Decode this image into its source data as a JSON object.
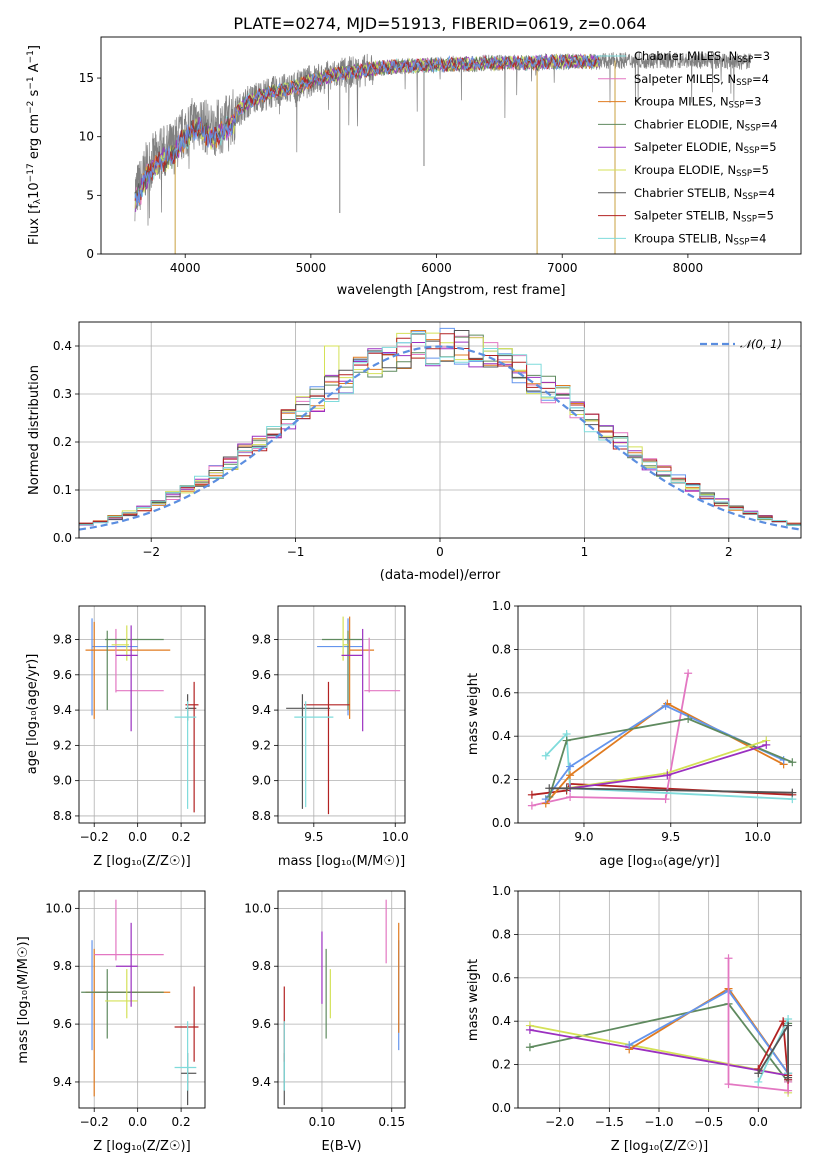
{
  "title": "PLATE=0274, MJD=51913, FIBERID=0619, z=0.064",
  "colors": {
    "c1": "#6495ed",
    "c2": "#e377c2",
    "c3": "#e07b20",
    "c4": "#5f8a5f",
    "c5": "#9b30c0",
    "c6": "#d4e157",
    "c7": "#555555",
    "c8": "#b22222",
    "c9": "#7fdbdb",
    "gray": "#808080",
    "grid": "#b0b0b0",
    "normal": "#5b8ee0"
  },
  "chart_data": [
    {
      "id": "spectrum",
      "type": "line",
      "xlabel": "wavelength [Angstrom, rest frame]",
      "ylabel_parts": [
        "Flux [f",
        "λ",
        "10",
        "−17",
        " erg cm",
        "−2",
        " s",
        "−1",
        " A",
        "−1",
        "]"
      ],
      "xlim": [
        3330,
        8900
      ],
      "ylim": [
        0,
        18.5
      ],
      "xticks": [
        4000,
        5000,
        6000,
        7000,
        8000
      ],
      "yticks": [
        0,
        5,
        10,
        15
      ],
      "ytick_labels": [
        "0",
        "5",
        "10",
        "15"
      ],
      "data_x": [
        3600,
        3650,
        3700,
        3800,
        3900,
        4000,
        4100,
        4200,
        4300,
        4400,
        4500,
        4600,
        4700,
        4800,
        4900,
        5000,
        5100,
        5200,
        5300,
        5400,
        5500,
        5600,
        5700,
        5800,
        5900,
        6000,
        6100,
        6200,
        6300,
        6400,
        6500,
        6600,
        6700,
        6800,
        6900,
        7000,
        7100,
        7200,
        7300,
        7400,
        7500,
        7600,
        7700,
        7800,
        7900,
        8000,
        8100,
        8200,
        8300,
        8400,
        8500
      ],
      "model_y": [
        5.2,
        6.0,
        7.5,
        8.5,
        9.0,
        10.5,
        11.5,
        10.5,
        11.0,
        12.0,
        13.0,
        13.5,
        13.8,
        14.0,
        14.3,
        14.8,
        15.0,
        15.3,
        15.5,
        15.6,
        15.8,
        15.9,
        16.0,
        16.0,
        16.1,
        16.1,
        16.2,
        16.2,
        16.2,
        16.3,
        16.3,
        16.3,
        16.3,
        16.3,
        16.4,
        16.4,
        16.4,
        16.4,
        16.4,
        16.5,
        16.5,
        16.5,
        16.5,
        16.5,
        16.5,
        16.5,
        16.5,
        16.5,
        16.4,
        16.4,
        16.4
      ],
      "model_end": [
        7300,
        8500
      ],
      "legend": [
        {
          "pre": "Chabrier MILES, N",
          "sub": "SSP",
          "post": "=3",
          "color": "c9"
        },
        {
          "pre": "Salpeter MILES, N",
          "sub": "SSP",
          "post": "=4",
          "color": "c2"
        },
        {
          "pre": "Kroupa MILES, N",
          "sub": "SSP",
          "post": "=3",
          "color": "c3"
        },
        {
          "pre": "Chabrier ELODIE, N",
          "sub": "SSP",
          "post": "=4",
          "color": "c4"
        },
        {
          "pre": "Salpeter ELODIE, N",
          "sub": "SSP",
          "post": "=5",
          "color": "c5"
        },
        {
          "pre": "Kroupa ELODIE, N",
          "sub": "SSP",
          "post": "=5",
          "color": "c6"
        },
        {
          "pre": "Chabrier STELIB, N",
          "sub": "SSP",
          "post": "=4",
          "color": "c7"
        },
        {
          "pre": "Salpeter STELIB, N",
          "sub": "SSP",
          "post": "=5",
          "color": "c8"
        },
        {
          "pre": "Kroupa STELIB, N",
          "sub": "SSP",
          "post": "=4",
          "color": "c9"
        }
      ]
    },
    {
      "id": "residuals",
      "type": "step",
      "xlabel": "(data-model)/error",
      "ylabel": "Normed distribution",
      "xlim": [
        -2.5,
        2.5
      ],
      "ylim": [
        0,
        0.45
      ],
      "xticks": [
        -2,
        -1,
        0,
        1,
        2
      ],
      "xtick_labels": [
        "−2",
        "−1",
        "0",
        "1",
        "2"
      ],
      "yticks": [
        0,
        0.1,
        0.2,
        0.3,
        0.4
      ],
      "ytick_labels": [
        "0.0",
        "0.1",
        "0.2",
        "0.3",
        "0.4"
      ],
      "legend_label": "𝒩(0, 1)",
      "bin_width": 0.1
    },
    {
      "id": "z-age",
      "type": "errorbar",
      "xlabel": "Z [log₁₀(Z/Z☉)]",
      "ylabel": "age  [log₁₀(age/yr)]",
      "xlim": [
        -0.27,
        0.31
      ],
      "ylim": [
        8.76,
        9.99
      ],
      "xticks": [
        -0.2,
        0,
        0.2
      ],
      "xtick_labels": [
        "−0.2",
        "0.0",
        "0.2"
      ],
      "yticks": [
        8.8,
        9.0,
        9.2,
        9.4,
        9.6,
        9.8
      ],
      "ytick_labels": [
        "8.8",
        "9.0",
        "9.2",
        "9.4",
        "9.6",
        "9.8"
      ],
      "points": [
        {
          "c": "c1",
          "x": -0.21,
          "xe": [
            -0.21,
            0.0
          ],
          "y": 9.76,
          "ye": [
            9.37,
            9.92
          ]
        },
        {
          "c": "c3",
          "x": -0.2,
          "xe": [
            -0.24,
            0.15
          ],
          "y": 9.74,
          "ye": [
            9.35,
            9.9
          ]
        },
        {
          "c": "c2",
          "x": -0.1,
          "xe": [
            -0.1,
            0.12
          ],
          "y": 9.51,
          "ye": [
            9.5,
            9.86
          ]
        },
        {
          "c": "c4",
          "x": -0.14,
          "xe": [
            -0.15,
            0.12
          ],
          "y": 9.8,
          "ye": [
            9.4,
            9.85
          ]
        },
        {
          "c": "c6",
          "x": -0.05,
          "xe": [
            -0.12,
            -0.04
          ],
          "y": 9.77,
          "ye": [
            9.68,
            9.88
          ]
        },
        {
          "c": "c5",
          "x": -0.03,
          "xe": [
            -0.1,
            0.0
          ],
          "y": 9.71,
          "ye": [
            9.28,
            9.88
          ]
        },
        {
          "c": "c7",
          "x": 0.23,
          "xe": [
            0.22,
            0.27
          ],
          "y": 9.41,
          "ye": [
            9.34,
            9.49
          ]
        },
        {
          "c": "c8",
          "x": 0.26,
          "xe": [
            0.22,
            0.28
          ],
          "y": 9.43,
          "ye": [
            8.82,
            9.56
          ]
        },
        {
          "c": "c9",
          "x": 0.23,
          "xe": [
            0.17,
            0.27
          ],
          "y": 9.36,
          "ye": [
            8.84,
            9.45
          ]
        }
      ]
    },
    {
      "id": "mass-age",
      "type": "errorbar",
      "xlabel": "mass [log₁₀(M/M☉)]",
      "ylabel": "",
      "xlim": [
        9.28,
        10.06
      ],
      "ylim": [
        8.76,
        9.99
      ],
      "xticks": [
        9.5,
        10.0
      ],
      "xtick_labels": [
        "9.5",
        "10.0"
      ],
      "yticks": [
        8.8,
        9.0,
        9.2,
        9.4,
        9.6,
        9.8
      ],
      "ytick_labels": [
        "8.8",
        "9.0",
        "9.2",
        "9.4",
        "9.6",
        "9.8"
      ],
      "points": [
        {
          "c": "c1",
          "x": 9.71,
          "xe": [
            9.52,
            9.8
          ],
          "y": 9.76,
          "ye": [
            9.37,
            9.92
          ]
        },
        {
          "c": "c3",
          "x": 9.72,
          "xe": [
            9.72,
            9.87
          ],
          "y": 9.74,
          "ye": [
            9.35,
            9.93
          ]
        },
        {
          "c": "c2",
          "x": 9.84,
          "xe": [
            9.81,
            10.03
          ],
          "y": 9.51,
          "ye": [
            9.5,
            9.81
          ]
        },
        {
          "c": "c4",
          "x": 9.71,
          "xe": [
            9.55,
            9.8
          ],
          "y": 9.8,
          "ye": [
            9.4,
            9.85
          ]
        },
        {
          "c": "c6",
          "x": 9.68,
          "xe": [
            9.68,
            9.71
          ],
          "y": 9.77,
          "ye": [
            9.68,
            9.93
          ]
        },
        {
          "c": "c5",
          "x": 9.8,
          "xe": [
            9.67,
            9.8
          ],
          "y": 9.71,
          "ye": [
            9.28,
            9.86
          ]
        },
        {
          "c": "c7",
          "x": 9.43,
          "xe": [
            9.33,
            9.6
          ],
          "y": 9.41,
          "ye": [
            8.84,
            9.49
          ]
        },
        {
          "c": "c8",
          "x": 9.59,
          "xe": [
            9.44,
            9.72
          ],
          "y": 9.43,
          "ye": [
            8.81,
            9.56
          ]
        },
        {
          "c": "c9",
          "x": 9.45,
          "xe": [
            9.38,
            9.62
          ],
          "y": 9.36,
          "ye": [
            8.85,
            9.45
          ]
        }
      ]
    },
    {
      "id": "age-weight",
      "type": "line",
      "xlabel": "age  [log₁₀(age/yr)]",
      "ylabel": "mass weight",
      "xlim": [
        8.62,
        10.25
      ],
      "ylim": [
        0,
        1
      ],
      "xticks": [
        9.0,
        9.5,
        10.0
      ],
      "xtick_labels": [
        "9.0",
        "9.5",
        "10.0"
      ],
      "yticks": [
        0,
        0.2,
        0.4,
        0.6,
        0.8,
        1.0
      ],
      "ytick_labels": [
        "0.0",
        "0.2",
        "0.4",
        "0.6",
        "0.8",
        "1.0"
      ],
      "series": [
        {
          "c": "c8",
          "x": [
            8.7,
            8.9,
            8.92,
            10.2
          ],
          "y": [
            0.13,
            0.15,
            0.18,
            0.13
          ]
        },
        {
          "c": "c2",
          "x": [
            8.7,
            8.92,
            9.47,
            9.6
          ],
          "y": [
            0.08,
            0.12,
            0.11,
            0.69
          ]
        },
        {
          "c": "c9",
          "x": [
            8.78,
            8.9,
            8.92,
            10.2
          ],
          "y": [
            0.31,
            0.41,
            0.16,
            0.11
          ]
        },
        {
          "c": "c3",
          "x": [
            8.78,
            8.92,
            9.48,
            10.15
          ],
          "y": [
            0.09,
            0.22,
            0.55,
            0.27
          ]
        },
        {
          "c": "c1",
          "x": [
            8.78,
            8.92,
            9.47,
            10.15
          ],
          "y": [
            0.11,
            0.26,
            0.54,
            0.29
          ]
        },
        {
          "c": "c4",
          "x": [
            8.8,
            8.9,
            9.6,
            10.2
          ],
          "y": [
            0.12,
            0.38,
            0.48,
            0.28
          ]
        },
        {
          "c": "c6",
          "x": [
            8.9,
            9.48,
            10.05
          ],
          "y": [
            0.16,
            0.23,
            0.38
          ]
        },
        {
          "c": "c5",
          "x": [
            8.92,
            9.48,
            10.05
          ],
          "y": [
            0.16,
            0.22,
            0.36
          ]
        },
        {
          "c": "c7",
          "x": [
            8.8,
            8.9,
            10.2
          ],
          "y": [
            0.16,
            0.16,
            0.14
          ]
        }
      ]
    },
    {
      "id": "z-mass",
      "type": "errorbar",
      "xlabel": "Z [log₁₀(Z/Z☉)]",
      "ylabel": "mass [log₁₀(M/M☉)]",
      "xlim": [
        -0.27,
        0.31
      ],
      "ylim": [
        9.31,
        10.06
      ],
      "xticks": [
        -0.2,
        0,
        0.2
      ],
      "xtick_labels": [
        "−0.2",
        "0.0",
        "0.2"
      ],
      "yticks": [
        9.4,
        9.6,
        9.8,
        10.0
      ],
      "ytick_labels": [
        "9.4",
        "9.6",
        "9.8",
        "10.0"
      ],
      "points": [
        {
          "c": "c1",
          "x": -0.21,
          "xe": [
            -0.21,
            0.0
          ],
          "y": 9.71,
          "ye": [
            9.51,
            9.89
          ]
        },
        {
          "c": "c3",
          "x": -0.2,
          "xe": [
            -0.24,
            0.15
          ],
          "y": 9.71,
          "ye": [
            9.35,
            9.86
          ]
        },
        {
          "c": "c2",
          "x": -0.1,
          "xe": [
            -0.2,
            0.12
          ],
          "y": 9.84,
          "ye": [
            9.82,
            10.03
          ]
        },
        {
          "c": "c4",
          "x": -0.14,
          "xe": [
            -0.26,
            0.12
          ],
          "y": 9.71,
          "ye": [
            9.55,
            9.79
          ]
        },
        {
          "c": "c6",
          "x": -0.05,
          "xe": [
            -0.15,
            0.0
          ],
          "y": 9.68,
          "ye": [
            9.62,
            9.79
          ]
        },
        {
          "c": "c5",
          "x": -0.03,
          "xe": [
            -0.1,
            0.0
          ],
          "y": 9.8,
          "ye": [
            9.66,
            9.95
          ]
        },
        {
          "c": "c7",
          "x": 0.23,
          "xe": [
            0.2,
            0.27
          ],
          "y": 9.43,
          "ye": [
            9.32,
            9.5
          ]
        },
        {
          "c": "c8",
          "x": 0.26,
          "xe": [
            0.17,
            0.28
          ],
          "y": 9.59,
          "ye": [
            9.47,
            9.73
          ]
        },
        {
          "c": "c9",
          "x": 0.23,
          "xe": [
            0.17,
            0.27
          ],
          "y": 9.45,
          "ye": [
            9.37,
            9.61
          ]
        }
      ]
    },
    {
      "id": "ebv-mass",
      "type": "errorbar",
      "xlabel": "E(B-V)",
      "ylabel": "",
      "xlim": [
        0.0685,
        0.1595
      ],
      "ylim": [
        9.31,
        10.06
      ],
      "xticks": [
        0.1,
        0.15
      ],
      "xtick_labels": [
        "0.10",
        "0.15"
      ],
      "yticks": [
        9.4,
        9.6,
        9.8,
        10.0
      ],
      "ytick_labels": [
        "9.4",
        "9.6",
        "9.8",
        "10.0"
      ],
      "points": [
        {
          "c": "c1",
          "x": 0.155,
          "xe": [
            0.155,
            0.155
          ],
          "y": 9.71,
          "ye": [
            9.51,
            9.89
          ]
        },
        {
          "c": "c3",
          "x": 0.155,
          "xe": [
            0.155,
            0.155
          ],
          "y": 9.71,
          "ye": [
            9.57,
            9.95
          ]
        },
        {
          "c": "c2",
          "x": 0.146,
          "xe": [
            0.146,
            0.146
          ],
          "y": 9.84,
          "ye": [
            9.81,
            10.03
          ]
        },
        {
          "c": "c4",
          "x": 0.103,
          "xe": [
            0.103,
            0.103
          ],
          "y": 9.71,
          "ye": [
            9.55,
            9.86
          ]
        },
        {
          "c": "c6",
          "x": 0.106,
          "xe": [
            0.106,
            0.106
          ],
          "y": 9.68,
          "ye": [
            9.62,
            9.79
          ]
        },
        {
          "c": "c5",
          "x": 0.1,
          "xe": [
            0.1,
            0.1
          ],
          "y": 9.8,
          "ye": [
            9.67,
            9.92
          ]
        },
        {
          "c": "c7",
          "x": 0.073,
          "xe": [
            0.073,
            0.073
          ],
          "y": 9.43,
          "ye": [
            9.32,
            9.5
          ]
        },
        {
          "c": "c8",
          "x": 0.073,
          "xe": [
            0.073,
            0.073
          ],
          "y": 9.59,
          "ye": [
            9.47,
            9.73
          ]
        },
        {
          "c": "c9",
          "x": 0.073,
          "xe": [
            0.073,
            0.073
          ],
          "y": 9.45,
          "ye": [
            9.37,
            9.61
          ]
        }
      ]
    },
    {
      "id": "z-weight",
      "type": "line",
      "xlabel": "Z [log₁₀(Z/Z☉)]",
      "ylabel": "mass weight",
      "xlim": [
        -2.42,
        0.43
      ],
      "ylim": [
        0,
        1
      ],
      "xticks": [
        -2.0,
        -1.5,
        -1.0,
        -0.5,
        0.0
      ],
      "xtick_labels": [
        "−2.0",
        "−1.5",
        "−1.0",
        "−0.5",
        "0.0"
      ],
      "yticks": [
        0,
        0.2,
        0.4,
        0.6,
        0.8,
        1.0
      ],
      "ytick_labels": [
        "0.0",
        "0.2",
        "0.4",
        "0.6",
        "0.8",
        "1.0"
      ],
      "series": [
        {
          "c": "c4",
          "x": [
            -2.3,
            -0.3,
            0.3,
            0.3
          ],
          "y": [
            0.28,
            0.48,
            0.12,
            0.39
          ]
        },
        {
          "c": "c6",
          "x": [
            -2.3,
            0.3,
            0.3
          ],
          "y": [
            0.38,
            0.15,
            0.07
          ]
        },
        {
          "c": "c5",
          "x": [
            -2.3,
            0.3,
            0.3
          ],
          "y": [
            0.36,
            0.15,
            0.13
          ]
        },
        {
          "c": "c3",
          "x": [
            -1.3,
            -0.3,
            0.3
          ],
          "y": [
            0.27,
            0.55,
            0.16
          ]
        },
        {
          "c": "c1",
          "x": [
            -1.3,
            -0.3,
            0.3
          ],
          "y": [
            0.29,
            0.54,
            0.16
          ]
        },
        {
          "c": "c2",
          "x": [
            -0.3,
            -0.3,
            0.3,
            0.3
          ],
          "y": [
            0.69,
            0.11,
            0.08,
            0.12
          ]
        },
        {
          "c": "c8",
          "x": [
            0.0,
            0.25,
            0.3,
            0.3
          ],
          "y": [
            0.18,
            0.4,
            0.13,
            0.15
          ]
        },
        {
          "c": "c9",
          "x": [
            0.0,
            0.3,
            0.3
          ],
          "y": [
            0.12,
            0.41,
            0.16
          ]
        },
        {
          "c": "c7",
          "x": [
            0.0,
            0.3,
            0.3
          ],
          "y": [
            0.16,
            0.38,
            0.14
          ]
        }
      ]
    }
  ]
}
